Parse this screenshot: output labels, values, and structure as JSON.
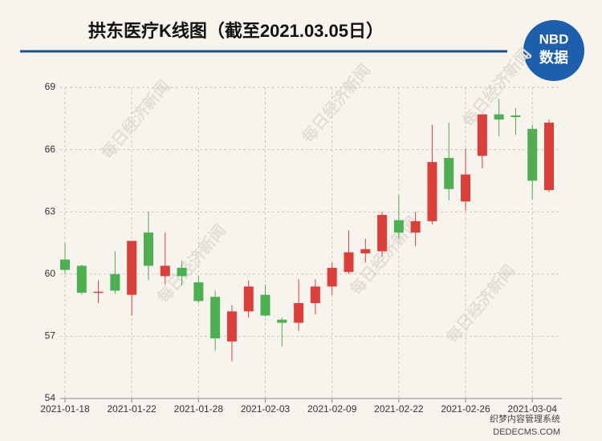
{
  "chart_data": {
    "type": "candlestick",
    "title": "拱东医疗K线图（截至2021.03.05日）",
    "logo": {
      "top": "NBD",
      "bottom": "数据"
    },
    "watermark": "每日经济新闻",
    "footer_watermark": {
      "line1": "织梦内容管理系统",
      "line2": "DEDECMS.COM"
    },
    "categories": [
      "2021-01-18",
      null,
      null,
      null,
      "2021-01-22",
      null,
      null,
      null,
      "2021-01-28",
      null,
      null,
      null,
      "2021-02-03",
      null,
      null,
      null,
      "2021-02-09",
      null,
      null,
      null,
      "2021-02-22",
      null,
      null,
      null,
      "2021-02-26",
      null,
      null,
      null,
      "2021-03-04",
      null
    ],
    "series": {
      "open": [
        60.7,
        60.4,
        59.1,
        60.0,
        59.0,
        62.0,
        59.9,
        60.3,
        59.6,
        58.9,
        56.75,
        58.2,
        59.0,
        57.8,
        57.65,
        58.6,
        59.4,
        60.1,
        61.0,
        61.1,
        62.6,
        62.0,
        62.55,
        65.6,
        63.5,
        65.7,
        67.7,
        67.65,
        67.0,
        64.05
      ],
      "high": [
        61.5,
        60.45,
        59.7,
        61.1,
        61.6,
        63.0,
        62.0,
        60.65,
        59.9,
        59.2,
        58.5,
        59.7,
        59.5,
        57.9,
        59.75,
        59.75,
        60.55,
        62.1,
        61.7,
        63.0,
        63.8,
        63.0,
        67.2,
        67.3,
        66.05,
        67.7,
        68.45,
        68.0,
        67.2,
        67.45
      ],
      "low": [
        60.0,
        59.0,
        58.6,
        59.05,
        58.0,
        59.7,
        59.5,
        59.45,
        58.6,
        56.3,
        55.8,
        57.9,
        57.95,
        56.5,
        57.25,
        58.05,
        59.0,
        60.0,
        60.55,
        60.85,
        61.7,
        61.35,
        62.4,
        63.55,
        63.05,
        65.1,
        66.65,
        66.7,
        63.6,
        63.95
      ],
      "close": [
        60.2,
        59.1,
        59.15,
        59.2,
        61.6,
        60.4,
        60.4,
        59.9,
        58.7,
        56.9,
        58.2,
        59.4,
        58.0,
        57.65,
        58.6,
        59.4,
        60.3,
        61.05,
        61.2,
        62.85,
        62.0,
        62.55,
        65.4,
        64.1,
        64.8,
        67.7,
        67.45,
        67.57,
        64.5,
        67.3
      ]
    },
    "up_color": "#dc3f3a",
    "down_color": "#4caf50",
    "ylim": [
      54,
      69
    ],
    "yticks": [
      54,
      57,
      60,
      63,
      66,
      69
    ],
    "grid": true
  }
}
